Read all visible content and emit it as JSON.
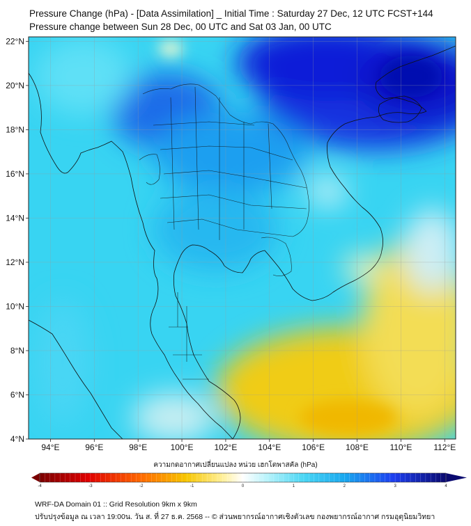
{
  "title_line1": "Pressure Change (hPa) - [Data Assimilation] _ Initial Time : Saturday 27 Dec, 12 UTC FCST+144",
  "title_line2": "Pressure change between Sun 28 Dec, 00 UTC and Sat 03 Jan, 00 UTC",
  "map": {
    "lon_range": [
      93,
      112.5
    ],
    "lat_range": [
      4,
      22.2
    ],
    "lat_ticks": [
      "22°N",
      "20°N",
      "18°N",
      "16°N",
      "14°N",
      "12°N",
      "10°N",
      "8°N",
      "6°N",
      "4°N"
    ],
    "lon_ticks": [
      "94°E",
      "96°E",
      "98°E",
      "100°E",
      "102°E",
      "104°E",
      "106°E",
      "108°E",
      "110°E",
      "112°E"
    ],
    "background_color": "#38d4f2",
    "strong_rise_color": "#0b1fd8",
    "fall_color": "#f0cc18"
  },
  "colorbar": {
    "title": "ความกดอากาศเปลี่ยนแปลง หน่วย เฮกโตพาสคัล (hPa)",
    "ticks": [
      "-4",
      "-3",
      "-2",
      "-1",
      "0",
      "1",
      "2",
      "3",
      "4"
    ],
    "range": [
      -4,
      4
    ],
    "negative_end_color": "#7a0000",
    "positive_end_color": "#0a0a70"
  },
  "footer_line1": "WRF-DA Domain 01 :: Grid Resolution 9km x 9km",
  "footer_line2": "ปรับปรุงข้อมูล ณ เวลา 19:00น. วัน ส. ที่ 27 ธ.ค. 2568 -- © ส่วนพยากรณ์อากาศเชิงตัวเลข กองพยากรณ์อากาศ กรมอุตุนิยมวิทยา"
}
